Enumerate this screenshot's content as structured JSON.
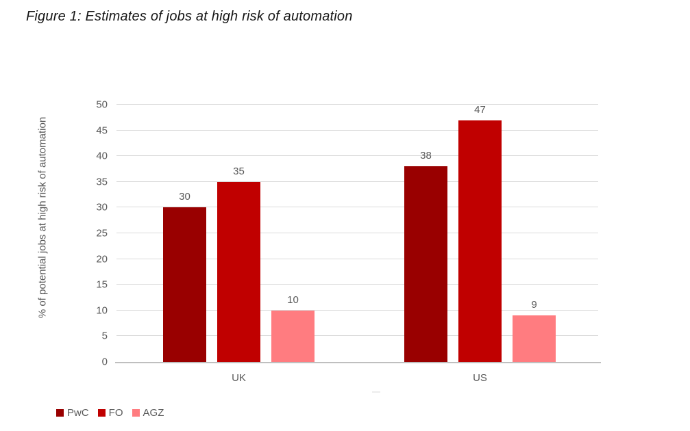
{
  "title": "Figure 1: Estimates of jobs at high risk of automation",
  "chart_data": {
    "type": "bar",
    "categories": [
      "UK",
      "US"
    ],
    "series": [
      {
        "name": "PwC",
        "color": "#990000",
        "values": [
          30,
          38
        ]
      },
      {
        "name": "FO",
        "color": "#C00000",
        "values": [
          35,
          47
        ]
      },
      {
        "name": "AGZ",
        "color": "#FF7C80",
        "values": [
          10,
          9
        ]
      }
    ],
    "ylabel": "% of potential jobs at high risk of automation",
    "xlabel": "",
    "ylim": [
      0,
      50
    ],
    "ytick_step": 5,
    "grid": true,
    "legend_position": "bottom-left",
    "data_labels": true,
    "axis_text_color": "#595959",
    "gridline_color": "#d9d9d9",
    "axis_line_color": "#bfbfbf"
  }
}
